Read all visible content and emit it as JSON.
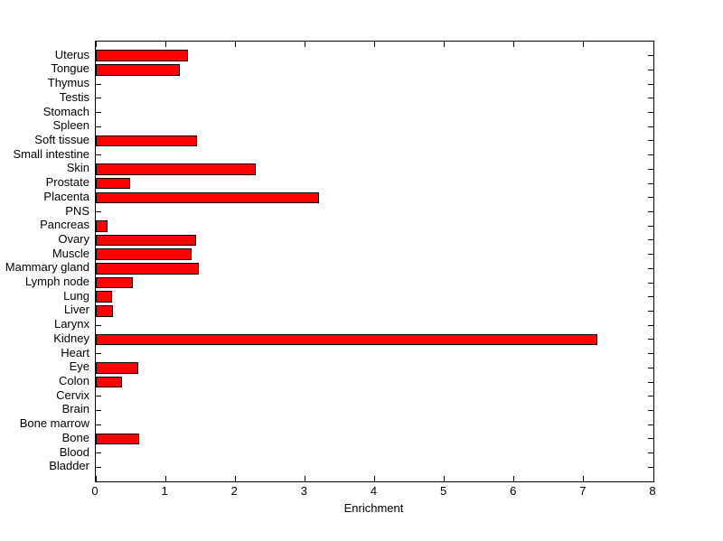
{
  "figure": {
    "background_color": "#ffffff",
    "axis_color": "#000000",
    "text_color": "#000000"
  },
  "chart_data": {
    "type": "bar",
    "orientation": "horizontal",
    "title": "",
    "xlabel": "Enrichment",
    "ylabel": "",
    "xlim": [
      0,
      8
    ],
    "xticks": [
      0,
      1,
      2,
      3,
      4,
      5,
      6,
      7,
      8
    ],
    "grid": false,
    "legend": null,
    "bar_color": "#ff0000",
    "bar_edge_color": "#000000",
    "category_order": "top-to-bottom",
    "categories": [
      "Uterus",
      "Tongue",
      "Thymus",
      "Testis",
      "Stomach",
      "Spleen",
      "Soft tissue",
      "Small intestine",
      "Skin",
      "Prostate",
      "Placenta",
      "PNS",
      "Pancreas",
      "Ovary",
      "Muscle",
      "Mammary gland",
      "Lymph node",
      "Lung",
      "Liver",
      "Larynx",
      "Kidney",
      "Heart",
      "Eye",
      "Colon",
      "Cervix",
      "Brain",
      "Bone marrow",
      "Bone",
      "Blood",
      "Bladder"
    ],
    "values": [
      1.32,
      1.2,
      0,
      0,
      0,
      0,
      1.45,
      0,
      2.29,
      0.49,
      3.2,
      0,
      0.17,
      1.44,
      1.37,
      1.48,
      0.53,
      0.23,
      0.25,
      0,
      7.2,
      0,
      0.61,
      0.37,
      0,
      0,
      0,
      0.62,
      0,
      0
    ]
  }
}
